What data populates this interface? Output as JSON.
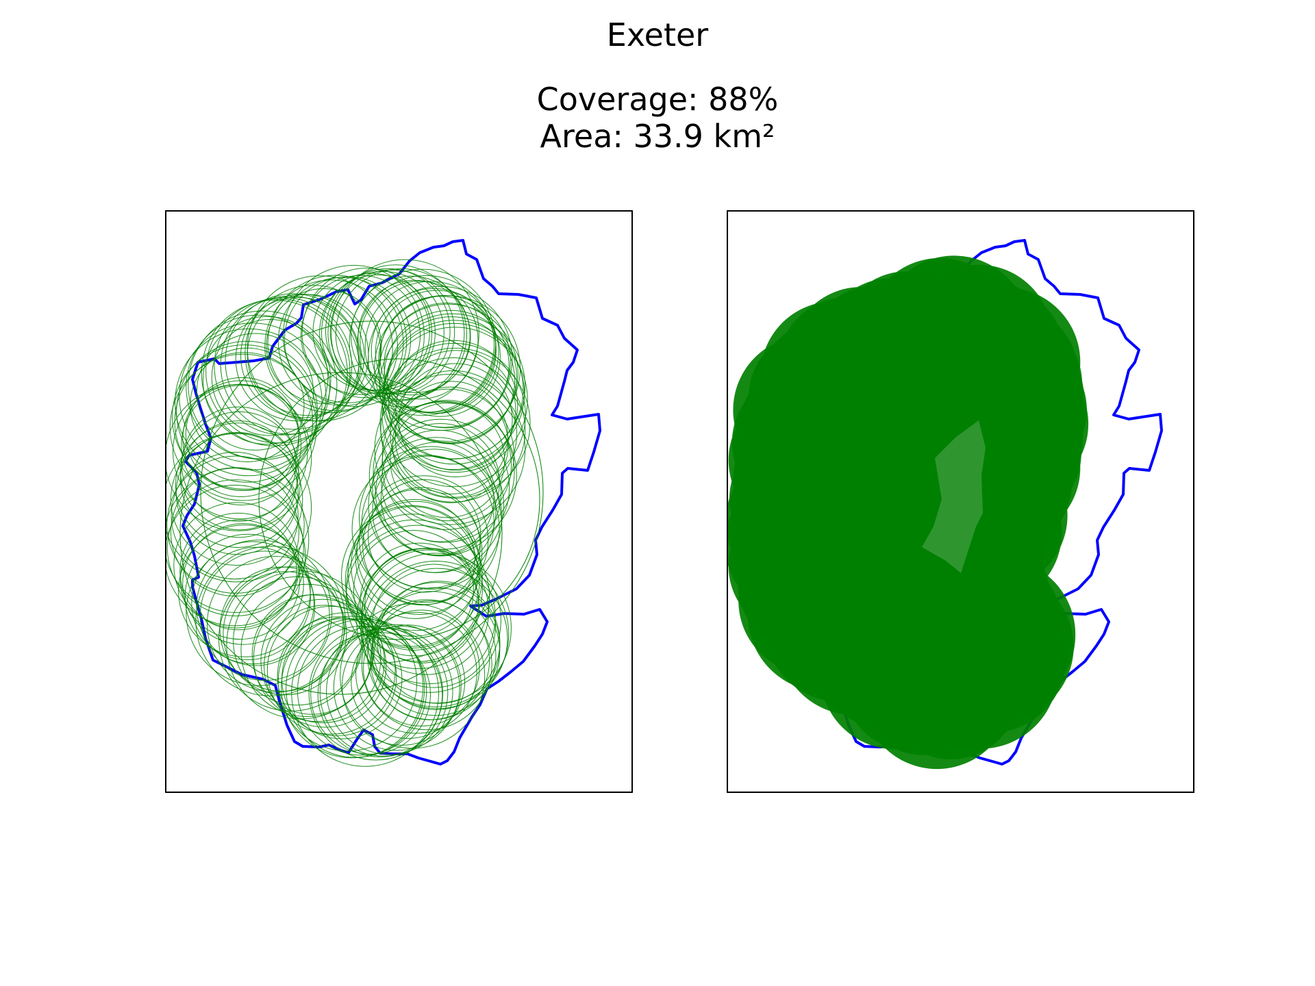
{
  "figure": {
    "title": "Exeter",
    "coverage_text": "Coverage: 88%",
    "area_text": "Area: 33.9 km²"
  },
  "colors": {
    "boundary": "#0000ff",
    "coverage": "#008000",
    "panel_frame": "#000000"
  },
  "panels": [
    {
      "name": "circle-outlines",
      "style": "outline"
    },
    {
      "name": "filled-coverage",
      "style": "filled"
    }
  ]
}
